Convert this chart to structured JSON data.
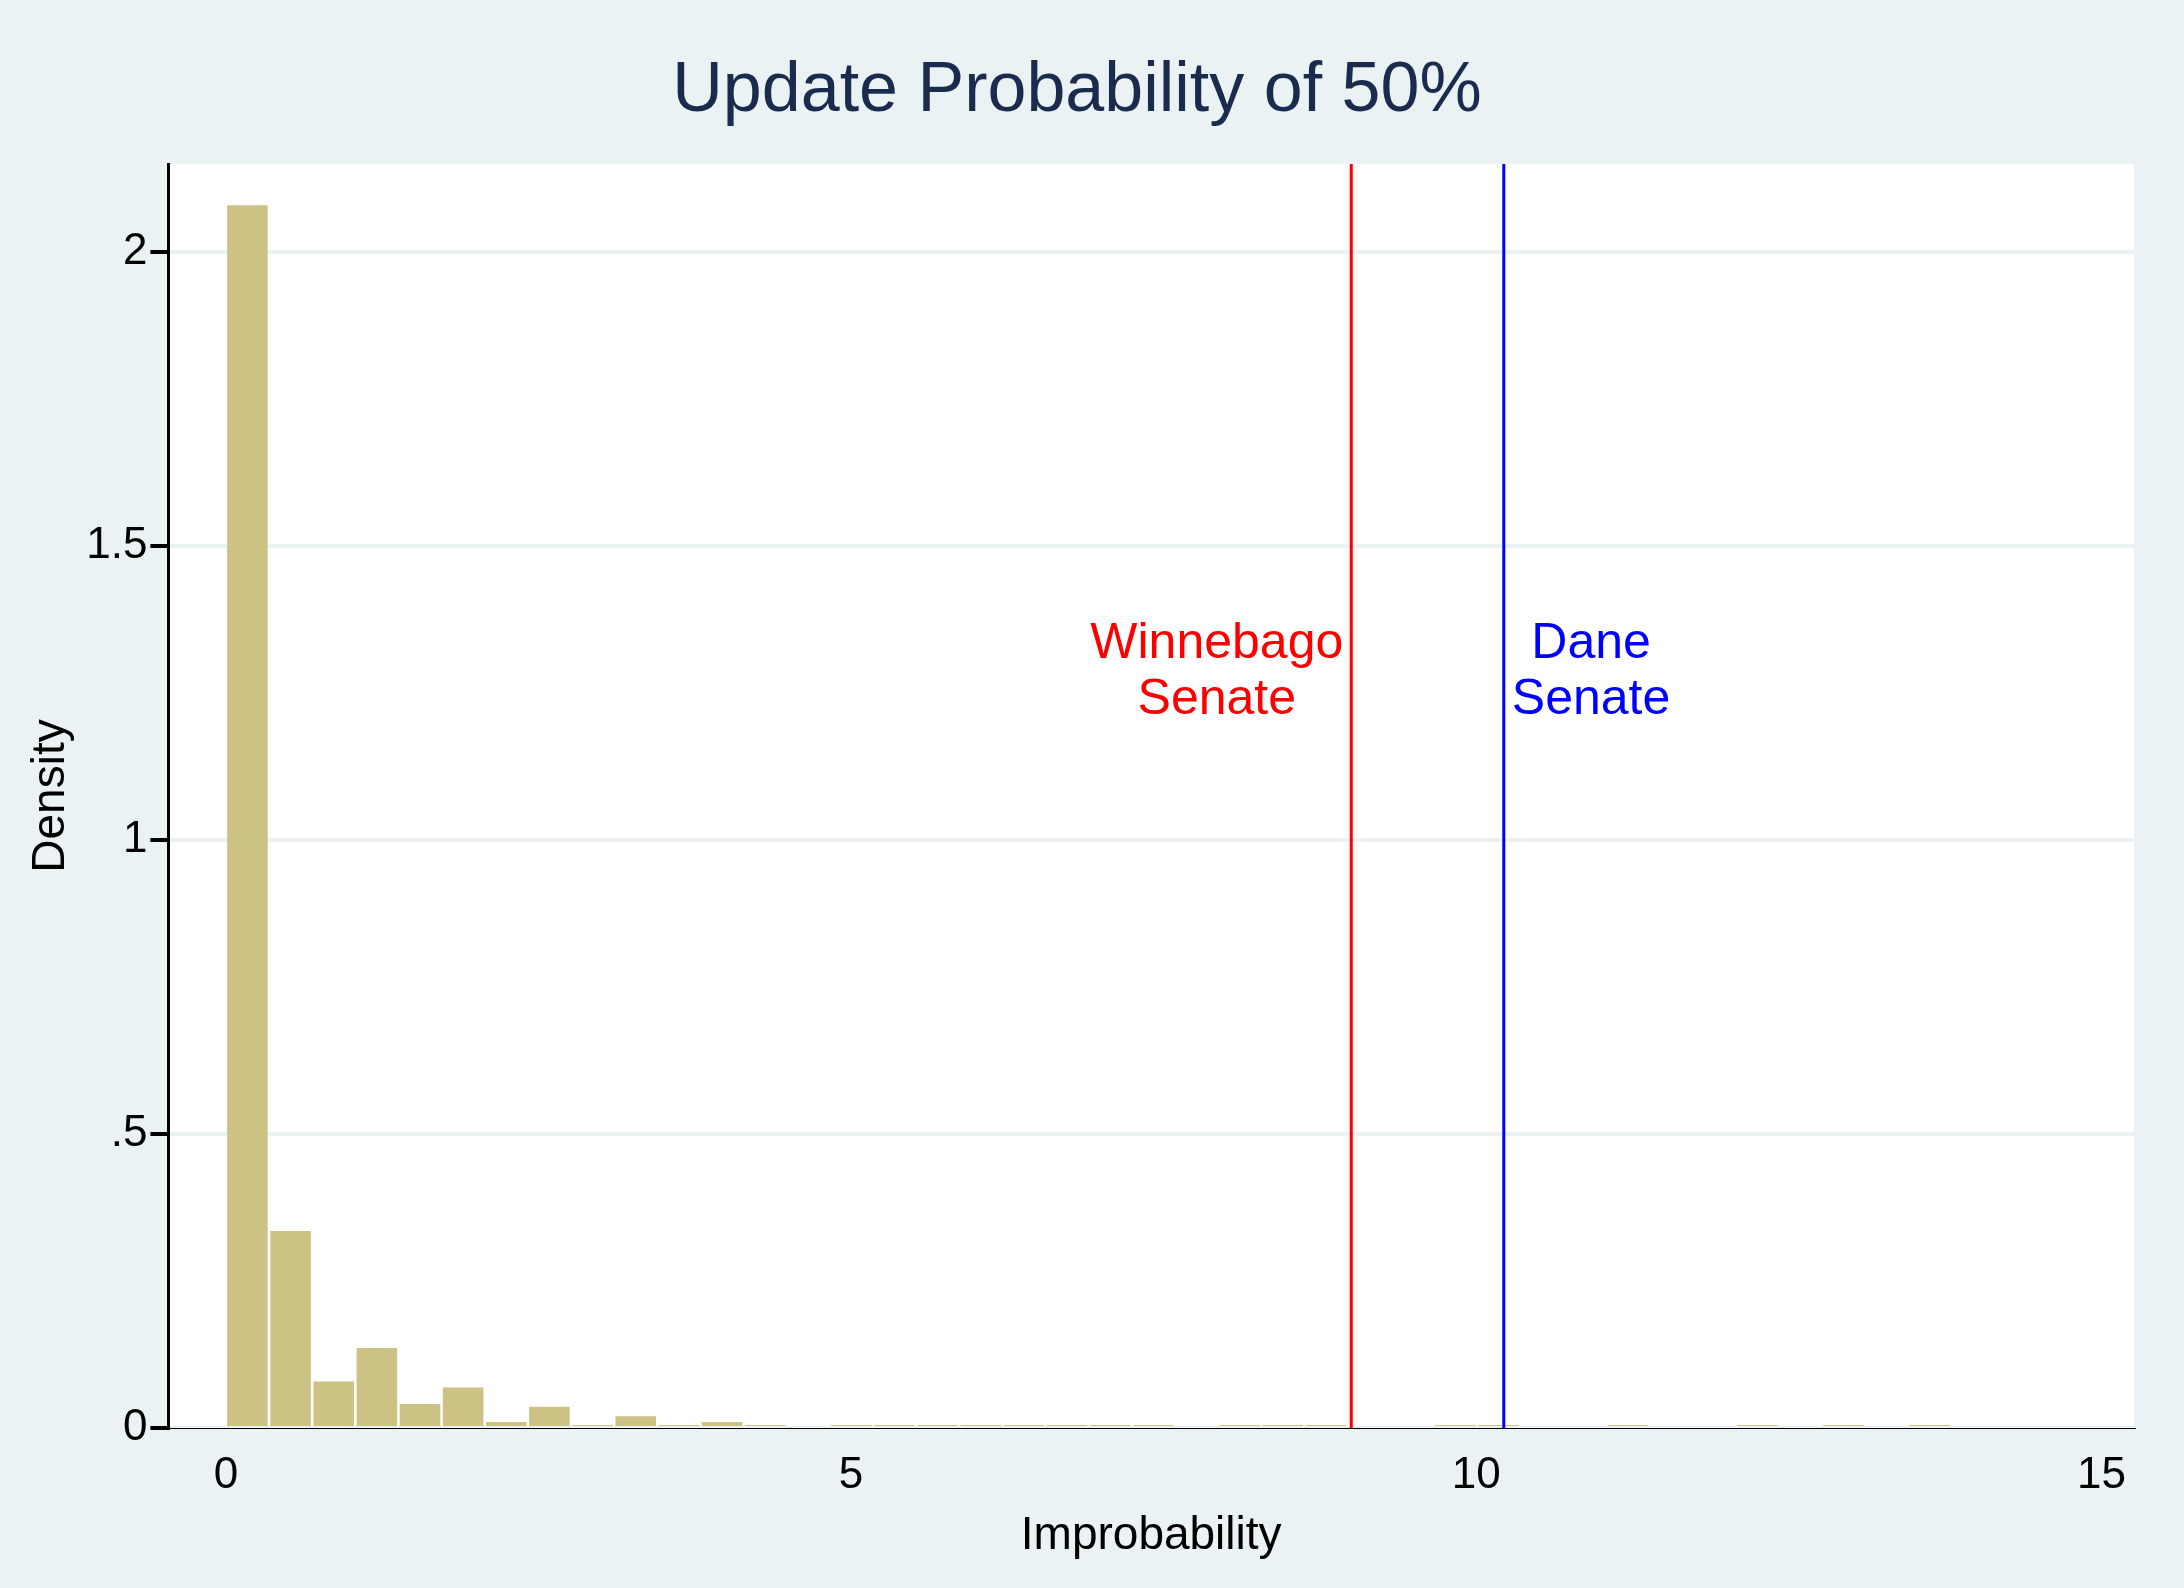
{
  "chart_data": {
    "type": "histogram",
    "title": "Update Probability of 50%",
    "xlabel": "Improbability",
    "ylabel": "Density",
    "bins": [
      0,
      0.345,
      0.69,
      1.035,
      1.38,
      1.725,
      2.07,
      2.415,
      2.76,
      3.105,
      3.45,
      3.795,
      4.14,
      4.485,
      4.83,
      5.175,
      5.52,
      5.865,
      6.21,
      6.555,
      6.9,
      7.245,
      7.59,
      7.935,
      8.28,
      8.625,
      8.97,
      9.315,
      9.66,
      10.005,
      10.35,
      10.695,
      11.04,
      11.385,
      11.73,
      12.075,
      12.42,
      12.765,
      13.11,
      13.455,
      13.8
    ],
    "values": [
      2.08,
      0.335,
      0.079,
      0.136,
      0.041,
      0.069,
      0.01,
      0.036,
      0.005,
      0.02,
      0.005,
      0.01,
      0.005,
      0,
      0.005,
      0.005,
      0.005,
      0.005,
      0.005,
      0.005,
      0.005,
      0.005,
      0,
      0.005,
      0.005,
      0.005,
      0,
      0,
      0.005,
      0.005,
      0,
      0,
      0.005,
      0,
      0,
      0.005,
      0,
      0.005,
      0,
      0.005
    ],
    "color": "#cbc283",
    "xlim": [
      -0.46,
      15.26
    ],
    "xticks": [
      0,
      5,
      10,
      15
    ],
    "ylim": [
      0,
      2.15
    ],
    "yticks": [
      0,
      {
        "value": 0.5,
        "label": ".5"
      },
      1,
      {
        "value": 1.5,
        "label": "1.5"
      },
      2
    ],
    "grid": "y",
    "ref_lines": [
      {
        "axis": "x",
        "value": 9.0,
        "label": "Winnebago Senate",
        "color": "#ff0000"
      },
      {
        "axis": "x",
        "value": 10.22,
        "label": "Dane Senate",
        "color": "#0000ff"
      }
    ]
  }
}
